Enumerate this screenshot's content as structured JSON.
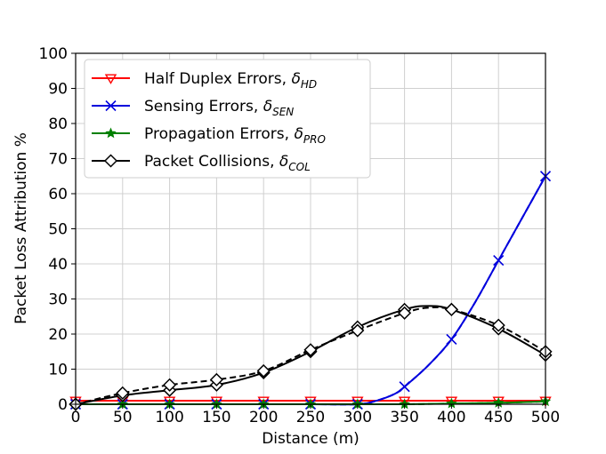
{
  "chart_data": {
    "type": "line",
    "xlabel": "Distance (m)",
    "ylabel": "Packet Loss Attribution %",
    "xlim": [
      0,
      500
    ],
    "ylim": [
      0,
      100
    ],
    "xticks": [
      0,
      50,
      100,
      150,
      200,
      250,
      300,
      350,
      400,
      450,
      500
    ],
    "yticks": [
      0,
      10,
      20,
      30,
      40,
      50,
      60,
      70,
      80,
      90,
      100
    ],
    "grid": true,
    "legend_position": "top-left",
    "series": [
      {
        "name": "Half Duplex Errors",
        "symbol": "δ",
        "subscript": "HD",
        "color": "#ff0000",
        "marker": "triangle-down",
        "solid": {
          "x": [
            0,
            50,
            100,
            150,
            200,
            250,
            300,
            350,
            400,
            450,
            500
          ],
          "y": [
            1,
            1,
            1,
            1,
            1,
            1,
            1,
            1,
            1,
            1,
            1
          ]
        },
        "dashed": {
          "x": [
            0,
            50,
            100,
            150,
            200,
            250,
            300,
            350,
            400,
            450,
            500
          ],
          "y": [
            1,
            1,
            1,
            1,
            1,
            1,
            1,
            1,
            1,
            1,
            1
          ]
        },
        "marker_x": [
          0,
          50,
          100,
          150,
          200,
          250,
          300,
          350,
          400,
          450,
          500
        ]
      },
      {
        "name": "Sensing Errors",
        "symbol": "δ",
        "subscript": "SEN",
        "color": "#0000dd",
        "marker": "x",
        "solid": {
          "x": [
            0,
            50,
            100,
            150,
            200,
            250,
            300,
            320,
            340,
            350,
            375,
            400,
            425,
            450,
            475,
            500
          ],
          "y": [
            0,
            0,
            0,
            0,
            0,
            0,
            0,
            1,
            3,
            5,
            11,
            18.5,
            29,
            41,
            53,
            65
          ]
        },
        "dashed": {
          "x": [
            0,
            50,
            100,
            150,
            200,
            250,
            300,
            320,
            340,
            350,
            375,
            400,
            425,
            450,
            475,
            500
          ],
          "y": [
            0,
            0,
            0,
            0,
            0,
            0,
            0,
            1,
            3,
            5,
            11,
            18.5,
            29,
            41,
            53,
            65
          ]
        },
        "marker_x": [
          0,
          50,
          100,
          150,
          200,
          250,
          300,
          350,
          400,
          450,
          500
        ],
        "marker_y": [
          0,
          0,
          0,
          0,
          0,
          0,
          0,
          5,
          18.5,
          41,
          65
        ]
      },
      {
        "name": "Propagation Errors",
        "symbol": "δ",
        "subscript": "PRO",
        "color": "#008000",
        "marker": "star",
        "solid": {
          "x": [
            0,
            50,
            100,
            150,
            200,
            250,
            300,
            350,
            400,
            450,
            500
          ],
          "y": [
            0,
            0,
            0,
            0,
            0,
            0,
            0,
            0,
            0.2,
            0.4,
            0.8
          ]
        },
        "dashed": {
          "x": [
            0,
            50,
            100,
            150,
            200,
            250,
            300,
            350,
            400,
            450,
            500
          ],
          "y": [
            0,
            0,
            0,
            0,
            0,
            0,
            0,
            0,
            0.2,
            0.4,
            0.8
          ]
        },
        "marker_x": [
          0,
          50,
          100,
          150,
          200,
          250,
          300,
          350,
          400,
          450,
          500
        ]
      },
      {
        "name": "Packet Collisions",
        "symbol": "δ",
        "subscript": "COL",
        "color": "#000000",
        "marker": "diamond",
        "solid": {
          "x": [
            0,
            50,
            100,
            150,
            200,
            250,
            300,
            350,
            375,
            400,
            450,
            500
          ],
          "y": [
            0,
            2.5,
            4,
            5.5,
            9,
            15,
            22,
            27,
            28,
            27,
            21.5,
            14
          ]
        },
        "dashed": {
          "x": [
            0,
            50,
            100,
            150,
            200,
            250,
            300,
            350,
            375,
            400,
            450,
            500
          ],
          "y": [
            0,
            3.2,
            5.5,
            7,
            9.5,
            15.5,
            21,
            26,
            27.5,
            27,
            22.5,
            15
          ]
        },
        "marker_x": [
          0,
          50,
          100,
          150,
          200,
          250,
          300,
          350,
          400,
          450,
          500
        ],
        "marker_y_solid": [
          0,
          2.5,
          4,
          5.5,
          9,
          15,
          22,
          27,
          27,
          21.5,
          14
        ],
        "marker_y_dashed": [
          0,
          3.2,
          5.5,
          7,
          9.5,
          15.5,
          21,
          26,
          27,
          22.5,
          15
        ]
      }
    ]
  }
}
